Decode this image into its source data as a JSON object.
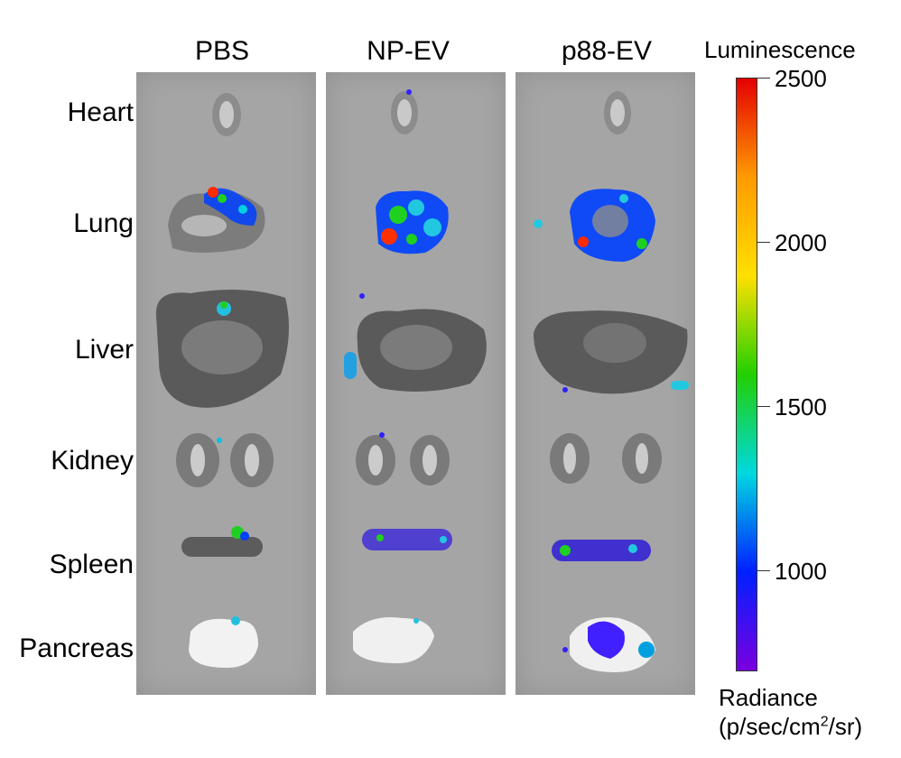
{
  "groups": [
    "PBS",
    "NP-EV",
    "p88-EV"
  ],
  "organs": [
    "Heart",
    "Lung",
    "Liver",
    "Kidney",
    "Spleen",
    "Pancreas"
  ],
  "colorbar": {
    "title": "Luminescence",
    "ticks": [
      2500,
      2000,
      1500,
      1000
    ],
    "unit_line1": "Radiance",
    "unit_line2_pre": "(p/sec/cm",
    "unit_line2_sup": "2",
    "unit_line2_post": "/sr)",
    "colors": [
      "#e40000",
      "#ff9a00",
      "#ffe000",
      "#22d000",
      "#00d8e0",
      "#0020ff",
      "#7a00e0"
    ]
  }
}
